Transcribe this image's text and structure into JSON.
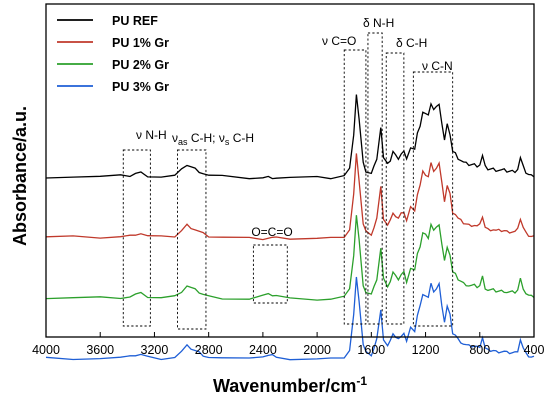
{
  "chart_data": {
    "type": "line",
    "xlabel": "Wavenumber/cm",
    "xlabel_sup": "-1",
    "ylabel": "Absorbance/a.u.",
    "xlim": [
      4000,
      400
    ],
    "x_ticks": [
      4000,
      3600,
      3200,
      2800,
      2400,
      2000,
      1600,
      1200,
      800,
      400
    ],
    "y_ticks_shown": false,
    "legend_position": "top-left",
    "series": [
      {
        "name": "PU REF",
        "color": "#000000",
        "offset": 0,
        "o_c_o": 0
      },
      {
        "name": "PU 1% Gr",
        "color": "#c0392b",
        "offset": -0.55,
        "o_c_o": 0
      },
      {
        "name": "PU 2% Gr",
        "color": "#2ca02c",
        "offset": -1.1,
        "o_c_o": 0.03
      },
      {
        "name": "PU 3% Gr",
        "color": "#1f5fd6",
        "offset": -1.65,
        "o_c_o": 0.03
      }
    ],
    "spectrum": {
      "x": [
        4000,
        3800,
        3600,
        3450,
        3380,
        3340,
        3300,
        3250,
        3150,
        3050,
        3000,
        2960,
        2930,
        2900,
        2870,
        2840,
        2800,
        2700,
        2500,
        2400,
        2360,
        2330,
        2300,
        2200,
        2000,
        1900,
        1800,
        1760,
        1730,
        1710,
        1690,
        1660,
        1640,
        1600,
        1580,
        1560,
        1530,
        1510,
        1480,
        1460,
        1440,
        1420,
        1400,
        1380,
        1360,
        1340,
        1310,
        1280,
        1260,
        1240,
        1220,
        1200,
        1180,
        1160,
        1140,
        1120,
        1100,
        1080,
        1060,
        1040,
        1020,
        1000,
        980,
        960,
        940,
        920,
        900,
        880,
        860,
        840,
        820,
        800,
        780,
        760,
        740,
        720,
        700,
        680,
        660,
        640,
        620,
        600,
        580,
        560,
        540,
        520,
        500,
        480,
        460,
        440,
        420,
        400
      ],
      "y": [
        0.03,
        0.03,
        0.03,
        0.035,
        0.04,
        0.06,
        0.065,
        0.04,
        0.03,
        0.04,
        0.09,
        0.14,
        0.12,
        0.1,
        0.08,
        0.06,
        0.04,
        0.03,
        0.02,
        0.02,
        0.025,
        0.025,
        0.02,
        0.02,
        0.02,
        0.02,
        0.04,
        0.1,
        0.42,
        0.78,
        0.55,
        0.15,
        0.08,
        0.06,
        0.12,
        0.2,
        0.48,
        0.2,
        0.14,
        0.18,
        0.26,
        0.22,
        0.2,
        0.24,
        0.26,
        0.18,
        0.3,
        0.28,
        0.42,
        0.5,
        0.62,
        0.6,
        0.58,
        0.7,
        0.64,
        0.66,
        0.7,
        0.52,
        0.36,
        0.5,
        0.42,
        0.26,
        0.24,
        0.2,
        0.18,
        0.16,
        0.15,
        0.14,
        0.14,
        0.14,
        0.13,
        0.14,
        0.22,
        0.12,
        0.1,
        0.1,
        0.1,
        0.09,
        0.09,
        0.09,
        0.09,
        0.08,
        0.08,
        0.08,
        0.08,
        0.1,
        0.2,
        0.12,
        0.07,
        0.05,
        0.04,
        0.04
      ]
    },
    "annotations": [
      {
        "label": "ν N-H"
      },
      {
        "label_parts": [
          "ν",
          "as",
          " C-H; ν",
          "s",
          " C-H"
        ]
      },
      {
        "label": "O=C=O"
      },
      {
        "label": "ν C=O"
      },
      {
        "label": "δ N-H"
      },
      {
        "label": "δ C-H"
      },
      {
        "label": "ν C-N"
      }
    ]
  }
}
